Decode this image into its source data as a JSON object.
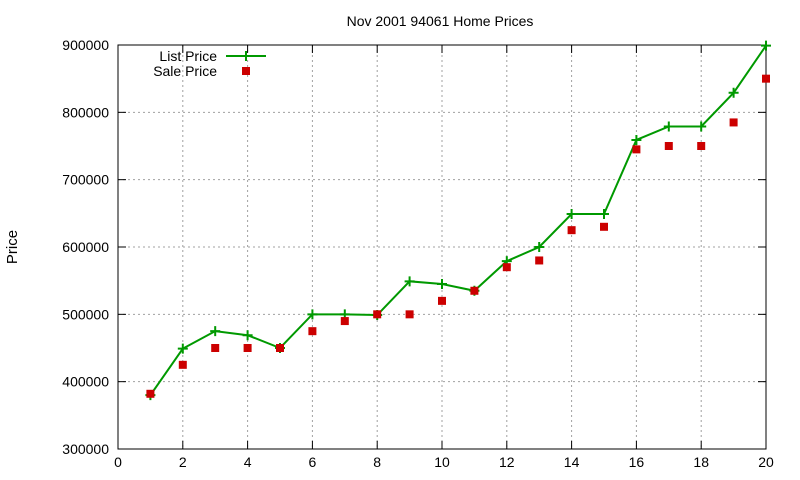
{
  "chart_data": {
    "type": "line",
    "title": "Nov 2001 94061 Home Prices",
    "xlabel": "",
    "ylabel": "Price",
    "xlim": [
      0,
      20
    ],
    "ylim": [
      300000,
      900000
    ],
    "xticks": [
      0,
      2,
      4,
      6,
      8,
      10,
      12,
      14,
      16,
      18,
      20
    ],
    "yticks": [
      300000,
      400000,
      500000,
      600000,
      700000,
      800000,
      900000
    ],
    "grid": true,
    "legend_position": "top-left",
    "series": [
      {
        "name": "List Price",
        "style": "line+cross",
        "color": "#009900",
        "x": [
          1,
          2,
          3,
          4,
          5,
          6,
          7,
          8,
          9,
          10,
          11,
          12,
          13,
          14,
          15,
          16,
          17,
          18,
          19,
          20
        ],
        "y": [
          380000,
          449000,
          475000,
          469000,
          450000,
          500000,
          500000,
          499000,
          549000,
          545000,
          535000,
          579000,
          600000,
          649000,
          649000,
          759000,
          779000,
          779000,
          829000,
          899000
        ]
      },
      {
        "name": "Sale Price",
        "style": "square",
        "color": "#cc0000",
        "x": [
          1,
          2,
          3,
          4,
          5,
          6,
          7,
          8,
          9,
          10,
          11,
          12,
          13,
          14,
          15,
          16,
          17,
          18,
          19,
          20
        ],
        "y": [
          382000,
          425000,
          450000,
          450000,
          450000,
          475000,
          490000,
          500000,
          500000,
          520000,
          535000,
          570000,
          580000,
          625000,
          630000,
          745000,
          750000,
          750000,
          785000,
          850000
        ]
      }
    ]
  }
}
